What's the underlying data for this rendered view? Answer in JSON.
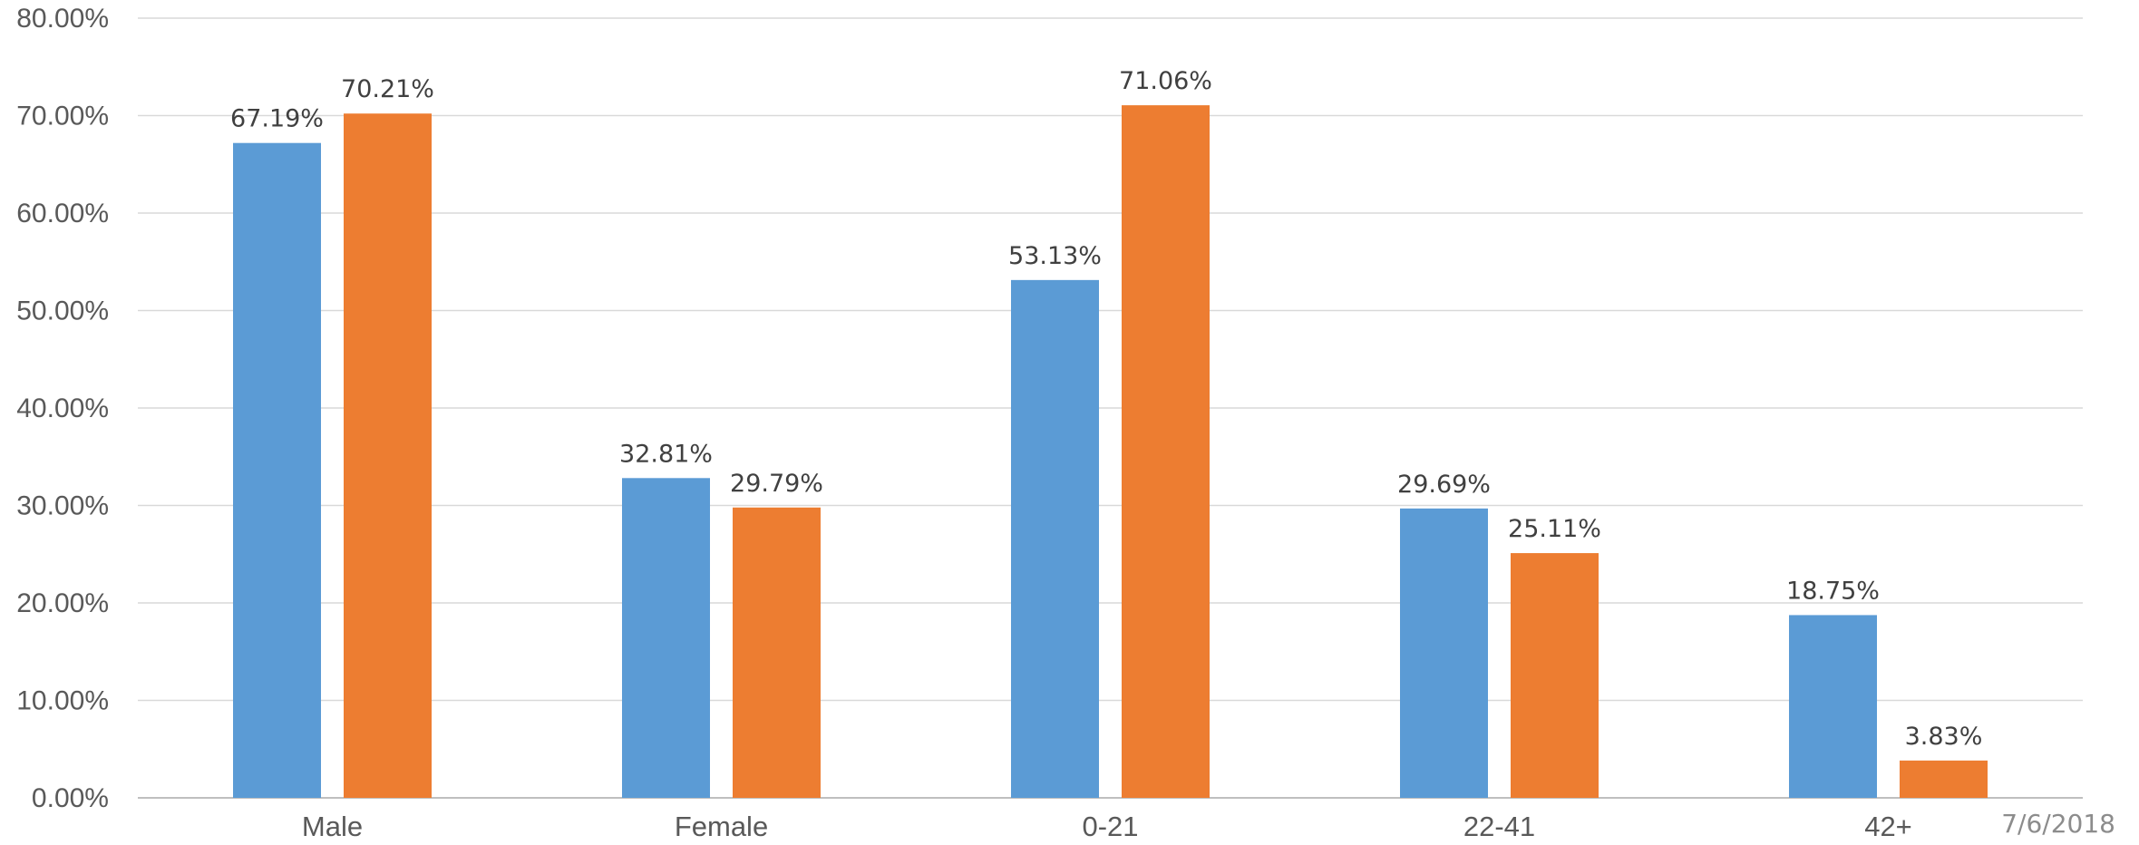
{
  "chart_data": {
    "type": "bar",
    "categories": [
      "Male",
      "Female",
      "0-21",
      "22-41",
      "42+"
    ],
    "series": [
      {
        "values": [
          67.19,
          32.81,
          53.13,
          29.69,
          18.75
        ],
        "labels": [
          "67.19%",
          "32.81%",
          "53.13%",
          "29.69%",
          "18.75%"
        ],
        "color": "#5B9BD5"
      },
      {
        "values": [
          70.21,
          29.79,
          71.06,
          25.11,
          3.83
        ],
        "labels": [
          "70.21%",
          "29.79%",
          "71.06%",
          "25.11%",
          "3.83%"
        ],
        "color": "#ED7D31"
      }
    ],
    "y_ticks": [
      "0.00%",
      "10.00%",
      "20.00%",
      "30.00%",
      "40.00%",
      "50.00%",
      "60.00%",
      "70.00%",
      "80.00%"
    ],
    "ylim": [
      0,
      80
    ],
    "grid": true,
    "title": "",
    "xlabel": "",
    "ylabel": ""
  },
  "footer": {
    "date": "7/6/2018"
  }
}
